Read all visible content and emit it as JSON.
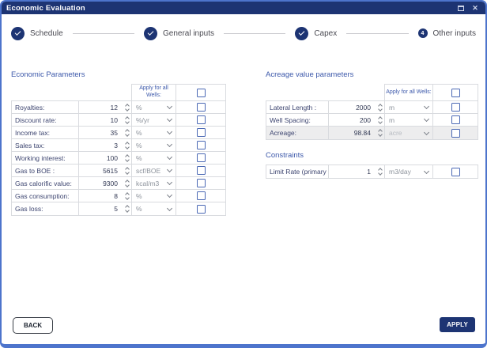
{
  "window": {
    "title": "Economic Evaluation",
    "close_icon": "✕"
  },
  "stepper": {
    "steps": [
      {
        "label": "Schedule",
        "state": "complete"
      },
      {
        "label": "General inputs",
        "state": "complete"
      },
      {
        "label": "Capex",
        "state": "complete"
      },
      {
        "label": "Other inputs",
        "state": "current",
        "step_number": "4"
      }
    ]
  },
  "economic_parameters": {
    "title": "Economic Parameters",
    "apply_for_all_label": "Apply for all Wells:",
    "rows": [
      {
        "label": "Royalties:",
        "value": "12",
        "unit": "%"
      },
      {
        "label": "Discount rate:",
        "value": "10",
        "unit": "%/yr"
      },
      {
        "label": "Income tax:",
        "value": "35",
        "unit": "%"
      },
      {
        "label": "Sales tax:",
        "value": "3",
        "unit": "%"
      },
      {
        "label": "Working interest:",
        "value": "100",
        "unit": "%"
      },
      {
        "label": "Gas to BOE :",
        "value": "5615",
        "unit": "scf/BOE"
      },
      {
        "label": "Gas calorific value:",
        "value": "9300",
        "unit": "kcal/m3"
      },
      {
        "label": "Gas consumption:",
        "value": "8",
        "unit": "%"
      },
      {
        "label": "Gas loss:",
        "value": "5",
        "unit": "%"
      }
    ]
  },
  "acreage_parameters": {
    "title": "Acreage value parameters",
    "apply_for_all_label": "Apply for all Wells:",
    "rows": [
      {
        "label": "Lateral Length :",
        "value": "2000",
        "unit": "m"
      },
      {
        "label": "Well Spacing:",
        "value": "200",
        "unit": "m"
      },
      {
        "label": "Acreage:",
        "value": "98.84",
        "unit": "acre",
        "disabled": true
      }
    ]
  },
  "constraints": {
    "title": "Constraints",
    "rows": [
      {
        "label": "Limit Rate (primary phas",
        "value": "1",
        "unit": "m3/day"
      }
    ]
  },
  "footer": {
    "back_label": "BACK",
    "apply_label": "APPLY"
  },
  "colors": {
    "titlebar": "#1d3473",
    "window-border": "#4d74cc",
    "accent-blue": "#3c58aa",
    "step-circle": "#1d3473",
    "checkbox-border": "#4a68b4",
    "table-border": "#d9dbdf",
    "label-text": "#3d4570",
    "value-text": "#333a55",
    "unit-text": "#8d939c",
    "disabled-bg": "#ededee",
    "apply-bg": "#1d3473"
  }
}
